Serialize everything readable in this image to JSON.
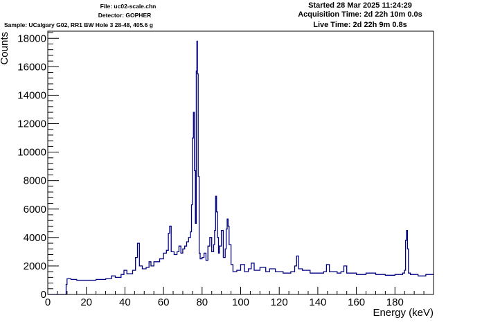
{
  "header": {
    "file": "File: uc02-scale.chn",
    "detector": "Detector: GOPHER",
    "sample": "Sample: UCalgary G02, RR1 BW Hole 3 28-48, 405.6 g",
    "started": "Started 28 Mar 2025 11:24:29",
    "acquisition": "Acquisition Time: 2d 22h 10m 0.0s",
    "live": "Live Time: 2d 22h 9m 0.8s"
  },
  "colors": {
    "series": "#000080",
    "frame": "#000000",
    "background": "#ffffff"
  },
  "chart_data": {
    "type": "line",
    "title": "",
    "xlabel": "Energy (keV)",
    "ylabel": "Counts",
    "xlim": [
      0,
      200
    ],
    "ylim": [
      0,
      18500
    ],
    "xticks": [
      0,
      20,
      40,
      60,
      80,
      100,
      120,
      140,
      160,
      180
    ],
    "yticks": [
      0,
      2000,
      4000,
      6000,
      8000,
      10000,
      12000,
      14000,
      16000,
      18000
    ],
    "grid": false,
    "legend": "none",
    "series": [
      {
        "x": [
          0,
          9,
          9.5,
          10,
          12,
          15,
          20,
          25,
          30,
          33,
          35,
          38,
          39.5,
          41,
          44,
          45.5,
          46.5,
          47.5,
          49,
          51,
          52.5,
          53.5,
          55,
          58,
          60,
          61.5,
          62.5,
          63.2,
          64,
          65.5,
          67,
          68,
          69,
          70,
          71,
          72,
          73,
          74,
          74.5,
          75,
          75.5,
          76,
          76.5,
          77,
          77.3,
          77.6,
          78,
          78.5,
          79,
          80,
          81,
          82,
          83,
          84,
          85,
          86,
          86.5,
          87,
          87.5,
          88,
          88.5,
          89,
          90,
          91,
          92,
          92.5,
          93,
          93.5,
          94,
          95,
          96,
          98,
          100,
          102,
          104,
          105.5,
          107,
          110,
          113,
          115,
          118,
          122,
          126,
          128,
          129,
          130,
          132,
          136,
          140,
          143,
          144.5,
          146,
          150,
          152,
          153.5,
          155,
          160,
          165,
          170,
          175,
          180,
          184,
          185,
          185.5,
          186,
          186.5,
          187,
          188,
          192,
          196,
          200
        ],
        "y": [
          0,
          0,
          700,
          1100,
          1050,
          1000,
          1000,
          1050,
          1100,
          1300,
          1200,
          1400,
          1700,
          1450,
          1700,
          2600,
          3600,
          2000,
          1800,
          1900,
          2300,
          2000,
          2300,
          2500,
          2900,
          3100,
          4300,
          4800,
          3000,
          2800,
          3000,
          3400,
          2900,
          3200,
          3400,
          3700,
          4000,
          4400,
          6300,
          11000,
          12800,
          8700,
          5000,
          15700,
          17800,
          15500,
          8300,
          2900,
          2500,
          2600,
          2900,
          2400,
          3400,
          4000,
          3000,
          3500,
          4500,
          6900,
          5800,
          4000,
          2900,
          3400,
          4500,
          2600,
          3200,
          4600,
          5300,
          4800,
          3500,
          2100,
          1600,
          1700,
          2100,
          1600,
          1800,
          2200,
          1700,
          1900,
          1600,
          1800,
          1600,
          1500,
          1600,
          2000,
          2700,
          1800,
          1700,
          1500,
          1500,
          1600,
          2100,
          1600,
          1500,
          1600,
          2000,
          1500,
          1400,
          1500,
          1400,
          1350,
          1400,
          1500,
          1700,
          3800,
          4500,
          3200,
          1500,
          1400,
          1300,
          1400,
          1450
        ]
      }
    ]
  }
}
